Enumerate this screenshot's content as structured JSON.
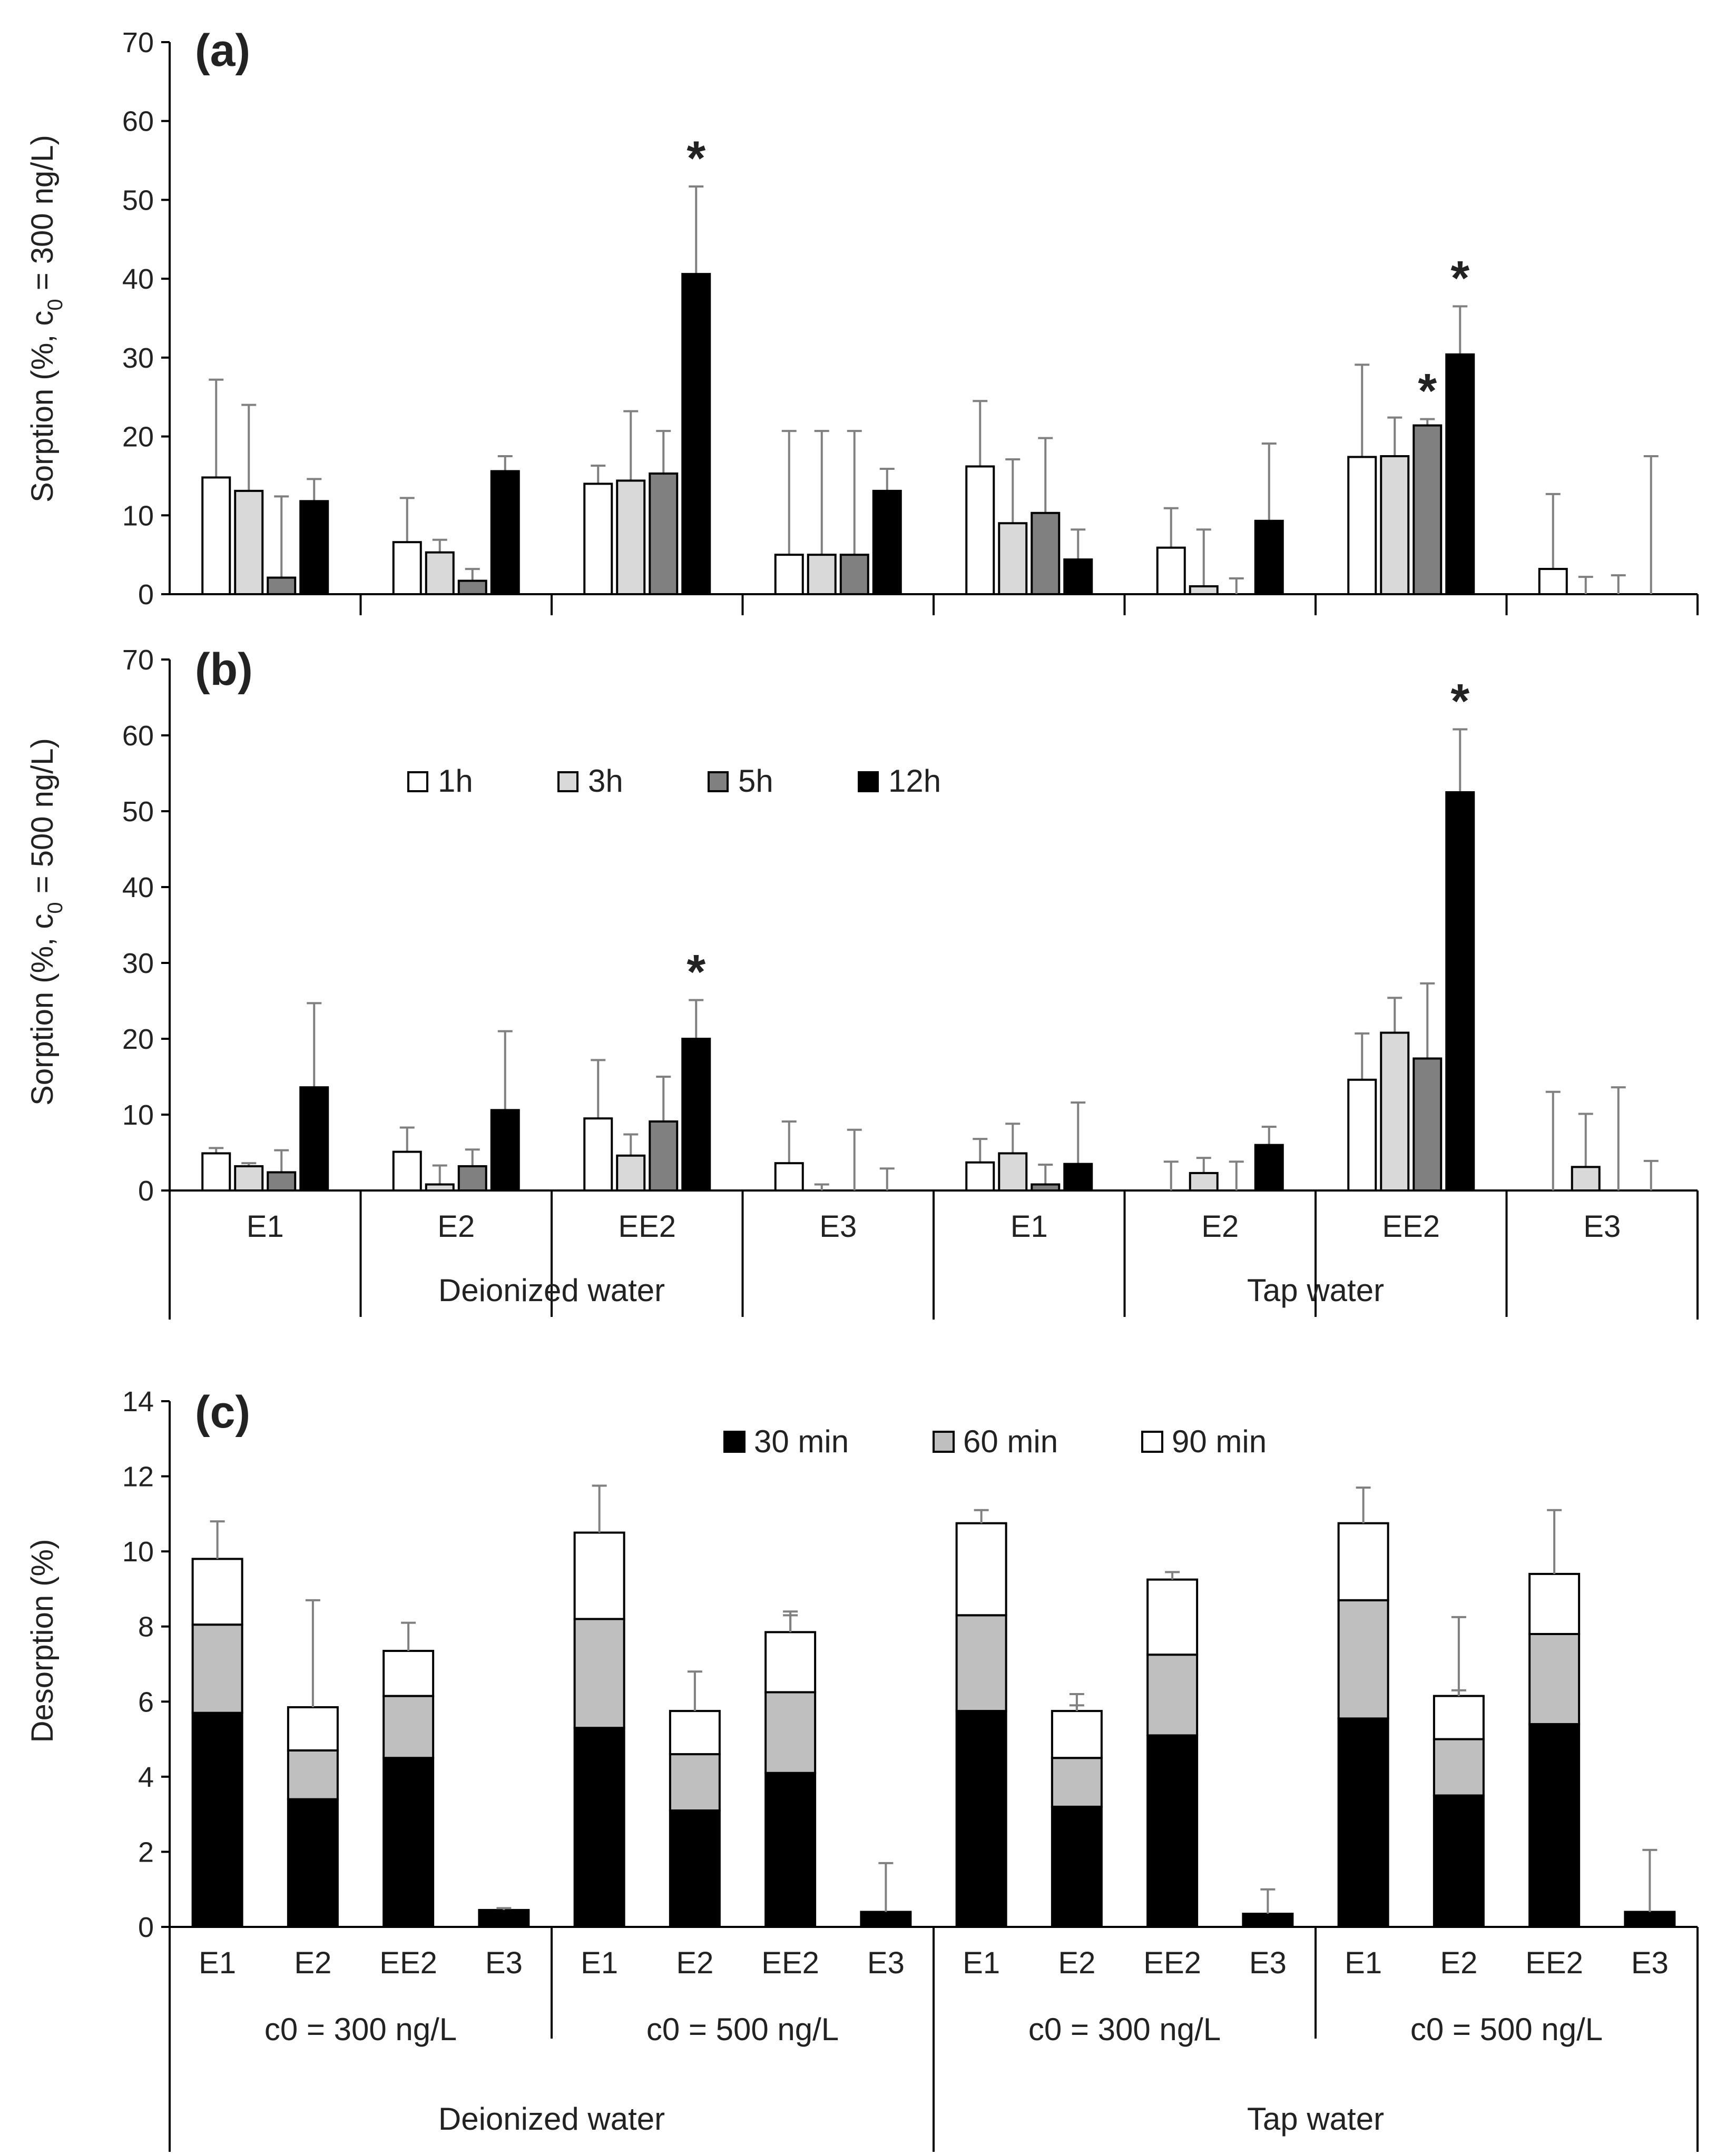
{
  "chart_data": [
    {
      "type": "bar",
      "panel_label": "(a)",
      "ylabel": "Sorption (%, c",
      "ylabel_sub": "0",
      "ylabel_tail": " = 300 ng/L)",
      "ylim": [
        0,
        70
      ],
      "yticks": [
        "0",
        "10",
        "20",
        "30",
        "40",
        "50",
        "60",
        "70"
      ],
      "categories": [
        "E1",
        "E2",
        "EE2",
        "E3",
        "E1",
        "E2",
        "EE2",
        "E3"
      ],
      "series": [
        {
          "name": "1h",
          "color": "#ffffff",
          "values": [
            14.8,
            6.6,
            14.0,
            5.0,
            16.2,
            5.9,
            17.4,
            3.2
          ],
          "errors": [
            12.4,
            5.6,
            2.3,
            15.7,
            8.3,
            5.0,
            11.7,
            9.5
          ]
        },
        {
          "name": "3h",
          "color": "#d9d9d9",
          "values": [
            13.1,
            5.3,
            14.4,
            5.0,
            9.0,
            1.0,
            17.5,
            0
          ],
          "errors": [
            10.9,
            1.6,
            8.8,
            15.7,
            8.1,
            7.2,
            4.9,
            2.2
          ]
        },
        {
          "name": "5h",
          "color": "#808080",
          "values": [
            2.1,
            1.7,
            15.3,
            5.0,
            10.3,
            0,
            21.4,
            0
          ],
          "errors": [
            10.3,
            1.5,
            5.4,
            15.7,
            9.5,
            2.0,
            0.8,
            2.4
          ]
        },
        {
          "name": "12h",
          "color": "#000000",
          "values": [
            11.8,
            15.6,
            40.6,
            13.1,
            4.4,
            9.3,
            30.4,
            0
          ],
          "errors": [
            2.8,
            1.9,
            11.1,
            2.8,
            3.8,
            9.8,
            6.1,
            17.5
          ]
        }
      ],
      "significant": [
        {
          "series": 3,
          "category": 2
        },
        {
          "series": 2,
          "category": 6
        },
        {
          "series": 3,
          "category": 6
        }
      ],
      "star_symbol": "*"
    },
    {
      "type": "bar",
      "panel_label": "(b)",
      "ylabel": "Sorption (%, c",
      "ylabel_sub": "0",
      "ylabel_tail": " = 500 ng/L)",
      "ylim": [
        0,
        70
      ],
      "yticks": [
        "0",
        "10",
        "20",
        "30",
        "40",
        "50",
        "60",
        "70"
      ],
      "categories": [
        "E1",
        "E2",
        "EE2",
        "E3",
        "E1",
        "E2",
        "EE2",
        "E3"
      ],
      "series": [
        {
          "name": "1h",
          "color": "#ffffff",
          "values": [
            4.9,
            5.1,
            9.5,
            3.6,
            3.7,
            0,
            14.6,
            0
          ],
          "errors": [
            0.7,
            3.2,
            7.7,
            5.5,
            3.1,
            3.8,
            6.1,
            13.0
          ]
        },
        {
          "name": "3h",
          "color": "#d9d9d9",
          "values": [
            3.2,
            0.8,
            4.6,
            0,
            4.9,
            2.3,
            20.8,
            3.1
          ],
          "errors": [
            0.4,
            2.5,
            2.8,
            0.8,
            3.9,
            2.0,
            4.6,
            7.0
          ]
        },
        {
          "name": "5h",
          "color": "#808080",
          "values": [
            2.4,
            3.2,
            9.1,
            0,
            0.8,
            0,
            17.4,
            0
          ],
          "errors": [
            2.9,
            2.2,
            5.9,
            8.0,
            2.6,
            3.8,
            9.9,
            13.6
          ]
        },
        {
          "name": "12h",
          "color": "#000000",
          "values": [
            13.6,
            10.6,
            20.0,
            0,
            3.5,
            6.0,
            52.5,
            0
          ],
          "errors": [
            11.1,
            10.4,
            5.1,
            2.9,
            8.1,
            2.4,
            8.3,
            3.9
          ]
        }
      ],
      "significant": [
        {
          "series": 3,
          "category": 2
        },
        {
          "series": 3,
          "category": 6
        }
      ],
      "star_symbol": "*",
      "legend": [
        "1h",
        "3h",
        "5h",
        "12h"
      ],
      "group_labels": [
        "Deionized water",
        "Tap water"
      ]
    },
    {
      "type": "stacked-bar",
      "panel_label": "(c)",
      "ylabel": "Desorption (%)",
      "ylim": [
        0,
        14
      ],
      "yticks": [
        "0",
        "2",
        "4",
        "6",
        "8",
        "10",
        "12",
        "14"
      ],
      "categories": [
        "E1",
        "E2",
        "EE2",
        "E3",
        "E1",
        "E2",
        "EE2",
        "E3",
        "E1",
        "E2",
        "EE2",
        "E3",
        "E1",
        "E2",
        "EE2",
        "E3"
      ],
      "subgroup_labels": [
        "c0 = 300 ng/L",
        "c0 = 500 ng/L",
        "c0 = 300 ng/L",
        "c0 = 500 ng/L"
      ],
      "group_labels": [
        "Deionized water",
        "Tap water"
      ],
      "legend": [
        "30 min",
        "60 min",
        "90 min"
      ],
      "series": [
        {
          "name": "30 min",
          "color": "#000000",
          "values": [
            5.7,
            3.4,
            4.5,
            0.45,
            5.3,
            3.1,
            4.1,
            0.4,
            5.75,
            3.2,
            5.1,
            0.35,
            5.55,
            3.5,
            5.4,
            0.4
          ],
          "error_tops": [
            6.1,
            4.2,
            5.2,
            0.5,
            6.1,
            3.9,
            4.9,
            1.7,
            7.55,
            4.3,
            5.6,
            1.0,
            6.75,
            4.0,
            6.55,
            2.05
          ]
        },
        {
          "name": "60 min",
          "color": "#bfbfbf",
          "values": [
            2.35,
            1.3,
            1.65,
            0,
            2.9,
            1.5,
            2.15,
            0,
            2.55,
            1.3,
            2.15,
            0,
            3.15,
            1.5,
            2.4,
            0
          ],
          "error_tops": [
            8.6,
            5.7,
            7.2,
            0,
            9.1,
            4.9,
            8.4,
            0,
            9.0,
            5.9,
            8.3,
            0,
            9.0,
            6.3,
            8.85,
            0
          ]
        },
        {
          "name": "90 min",
          "color": "#ffffff",
          "values": [
            1.75,
            1.15,
            1.2,
            0,
            2.3,
            1.15,
            1.6,
            0,
            2.45,
            1.25,
            2.0,
            0,
            2.05,
            1.15,
            1.6,
            0
          ],
          "error_tops": [
            10.8,
            8.7,
            8.1,
            0,
            11.75,
            6.8,
            8.3,
            0,
            11.1,
            6.2,
            9.45,
            0,
            11.7,
            8.25,
            11.1,
            0
          ]
        }
      ]
    }
  ]
}
